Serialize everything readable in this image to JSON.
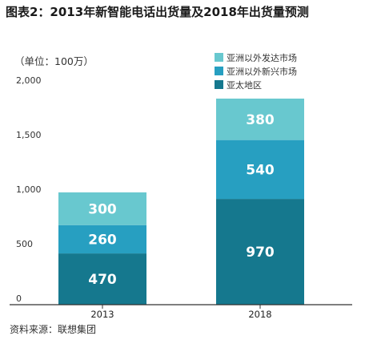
{
  "header": {
    "title": "图表2：2013年新智能电话出货量及2018年出货量预测",
    "unit": "（单位：100万）"
  },
  "footer": {
    "source": "资料来源：联想集团"
  },
  "colors": {
    "asia_pacific": "#15788e",
    "emerging_ex_asia": "#279fc1",
    "developed_ex_asia": "#68c8cf",
    "axis": "#333333"
  },
  "chart_data": {
    "type": "bar",
    "stacked": true,
    "categories": [
      "2013",
      "2018"
    ],
    "series": [
      {
        "name": "亚太地区",
        "values": [
          470,
          970
        ],
        "color": "#15788e"
      },
      {
        "name": "亚洲以外新兴市场",
        "values": [
          260,
          540
        ],
        "color": "#279fc1"
      },
      {
        "name": "亚洲以外发达市场",
        "values": [
          300,
          380
        ],
        "color": "#68c8cf"
      }
    ],
    "legend_order": [
      "亚洲以外发达市场",
      "亚洲以外新兴市场",
      "亚太地区"
    ],
    "yticks": [
      "0",
      "500",
      "1,000",
      "1,500",
      "2,000"
    ],
    "ytick_values": [
      0,
      500,
      1000,
      1500,
      2000
    ],
    "ylim": [
      0,
      2000
    ],
    "legend_position": "top-right",
    "grid": false
  }
}
